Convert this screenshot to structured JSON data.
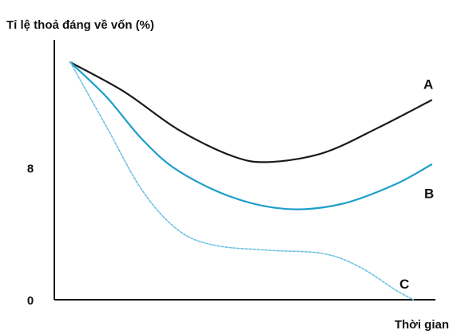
{
  "chart_data": {
    "type": "line",
    "ylabel": "Tỉ lệ thoả đáng về vốn (%)",
    "xlabel": "Thời gian",
    "ylim": [
      0,
      16
    ],
    "xlim": [
      0,
      10
    ],
    "y_ticks": [
      {
        "value": 0,
        "label": "0"
      },
      {
        "value": 8,
        "label": "8"
      }
    ],
    "grid": false,
    "series": [
      {
        "name": "A",
        "color": "#1a1a1a",
        "dashed": false,
        "points": [
          [
            0.0,
            14.4
          ],
          [
            1.5,
            12.6
          ],
          [
            3.0,
            10.3
          ],
          [
            4.5,
            8.7
          ],
          [
            5.5,
            8.35
          ],
          [
            7.0,
            8.9
          ],
          [
            8.5,
            10.4
          ],
          [
            10.0,
            12.1
          ]
        ]
      },
      {
        "name": "B",
        "color": "#1e9fc8",
        "dashed": false,
        "points": [
          [
            0.0,
            14.4
          ],
          [
            1.0,
            12.3
          ],
          [
            2.0,
            9.7
          ],
          [
            3.0,
            7.8
          ],
          [
            4.5,
            6.2
          ],
          [
            6.0,
            5.5
          ],
          [
            7.5,
            5.8
          ],
          [
            9.0,
            7.0
          ],
          [
            10.0,
            8.2
          ]
        ]
      },
      {
        "name": "C",
        "color": "#6dc3e2",
        "dashed": true,
        "points": [
          [
            0.0,
            14.4
          ],
          [
            1.0,
            10.5
          ],
          [
            2.0,
            6.6
          ],
          [
            3.0,
            4.2
          ],
          [
            4.0,
            3.3
          ],
          [
            5.5,
            3.0
          ],
          [
            7.0,
            2.8
          ],
          [
            8.0,
            2.0
          ],
          [
            9.0,
            0.6
          ],
          [
            9.5,
            0.0
          ]
        ]
      }
    ],
    "colors": {
      "axis": "#111111",
      "text": "#111111",
      "background": "#ffffff"
    }
  }
}
